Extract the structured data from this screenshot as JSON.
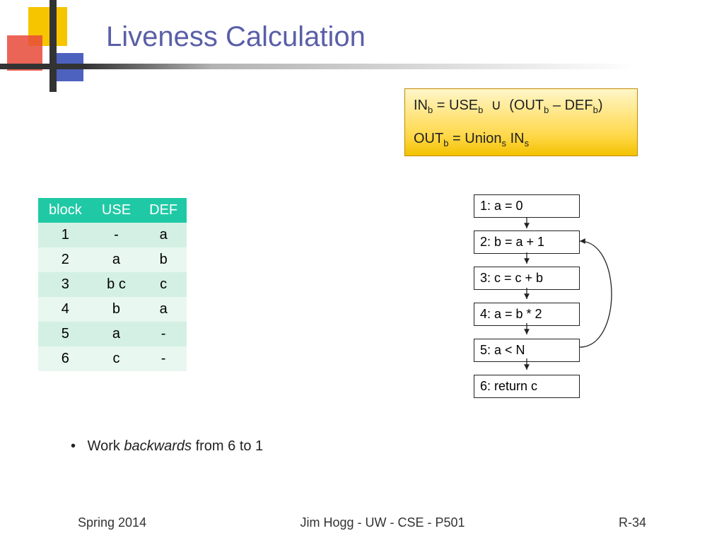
{
  "title": "Liveness Calculation",
  "formula": {
    "line1_html": "IN<sub>b</sub> = USE<sub>b</sub> &nbsp;∪&nbsp; (OUT<sub>b</sub> – DEF<sub>b</sub>)",
    "line2_html": "OUT<sub>b</sub> = Union<sub>s</sub> IN<sub>s</sub>",
    "box_gradient_top": "#fff6c8",
    "box_gradient_bottom": "#f3c200",
    "border_color": "#c08a00"
  },
  "table": {
    "header_bg": "#20c9a5",
    "row_odd_bg": "#d4f0e4",
    "row_even_bg": "#e8f7f0",
    "columns": [
      "block",
      "USE",
      "DEF"
    ],
    "rows": [
      [
        "1",
        "-",
        "a"
      ],
      [
        "2",
        "a",
        "b"
      ],
      [
        "3",
        "b c",
        "c"
      ],
      [
        "4",
        "b",
        "a"
      ],
      [
        "5",
        "a",
        "-"
      ],
      [
        "6",
        "c",
        "-"
      ]
    ]
  },
  "note_html": "Work <em>backwards</em> from 6 to 1",
  "flowchart": {
    "nodes": [
      "1: a = 0",
      "2: b = a + 1",
      "3: c = c + b",
      "4: a = b * 2",
      "5: a < N",
      "6: return c"
    ],
    "node_border": "#222222",
    "back_edge": {
      "from": 5,
      "to": 2
    }
  },
  "footer": {
    "left": "Spring 2014",
    "center": "Jim Hogg - UW - CSE - P501",
    "right": "R-34"
  },
  "logo_colors": {
    "yellow": "#f7c500",
    "red": "#e84a3a",
    "blue": "#3a50b8",
    "bar": "#333333"
  }
}
